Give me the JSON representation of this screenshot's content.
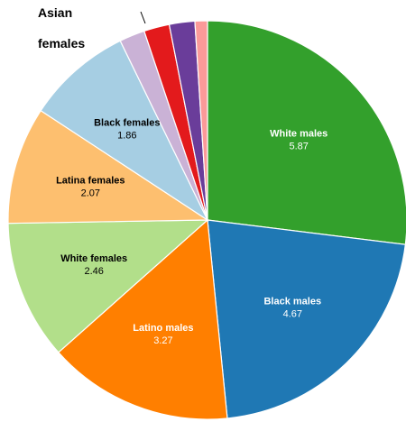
{
  "chart_data": {
    "type": "pie",
    "title": "",
    "start_angle_deg": 0,
    "direction": "clockwise",
    "slices": [
      {
        "name": "White males",
        "label": "White males",
        "value": 5.87,
        "value_text": "5.87",
        "color": "#33a02c",
        "text_color": "#ffffff"
      },
      {
        "name": "Black males",
        "label": "Black males",
        "value": 4.67,
        "value_text": "4.67",
        "color": "#1f78b4",
        "text_color": "#ffffff"
      },
      {
        "name": "Latino males",
        "label": "Latino males",
        "value": 3.27,
        "value_text": "3.27",
        "color": "#ff7f00",
        "text_color": "#ffffff"
      },
      {
        "name": "White females",
        "label": "White females",
        "value": 2.46,
        "value_text": "2.46",
        "color": "#b2df8a",
        "text_color": "#000000"
      },
      {
        "name": "Latina females",
        "label": "Latina females",
        "value": 2.07,
        "value_text": "2.07",
        "color": "#fdbf6f",
        "text_color": "#000000"
      },
      {
        "name": "Black females",
        "label": "Black females",
        "value": 1.86,
        "value_text": "1.86",
        "color": "#a6cee3",
        "text_color": "#000000"
      },
      {
        "name": "Asian females",
        "label": "",
        "value": 0.45,
        "value_text": "",
        "color": "#cab2d6",
        "text_color": "#000000"
      },
      {
        "name": "",
        "label": "",
        "value": 0.45,
        "value_text": "",
        "color": "#e31a1c",
        "text_color": "#ffffff"
      },
      {
        "name": "",
        "label": "",
        "value": 0.45,
        "value_text": "",
        "color": "#6a3d9a",
        "text_color": "#ffffff"
      },
      {
        "name": "",
        "label": "",
        "value": 0.22,
        "value_text": "",
        "color": "#fb9a99",
        "text_color": "#000000"
      }
    ],
    "external_labels": [
      {
        "text_lines": [
          "Asian",
          "females"
        ]
      }
    ]
  }
}
